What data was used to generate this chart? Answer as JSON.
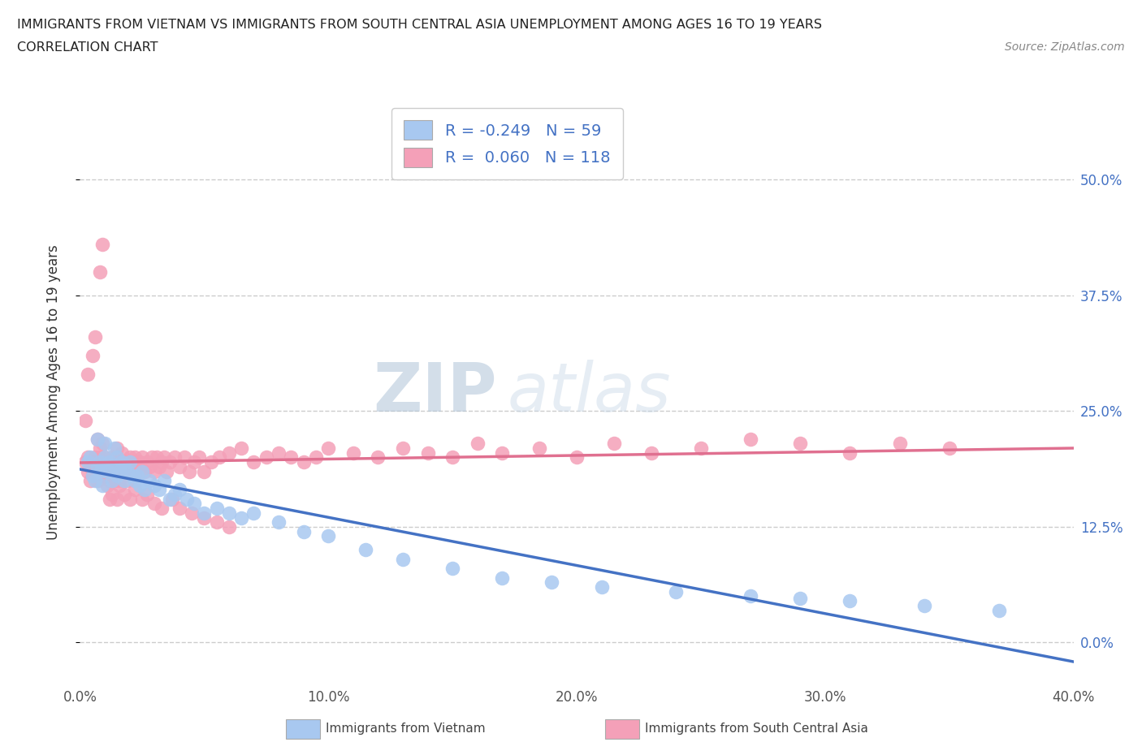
{
  "title_line1": "IMMIGRANTS FROM VIETNAM VS IMMIGRANTS FROM SOUTH CENTRAL ASIA UNEMPLOYMENT AMONG AGES 16 TO 19 YEARS",
  "title_line2": "CORRELATION CHART",
  "source_text": "Source: ZipAtlas.com",
  "ylabel": "Unemployment Among Ages 16 to 19 years",
  "xlim": [
    0.0,
    0.4
  ],
  "ylim": [
    -0.04,
    0.58
  ],
  "yticks": [
    0.0,
    0.125,
    0.25,
    0.375,
    0.5
  ],
  "ytick_labels": [
    "0.0%",
    "12.5%",
    "25.0%",
    "37.5%",
    "50.0%"
  ],
  "xticks": [
    0.0,
    0.1,
    0.2,
    0.3,
    0.4
  ],
  "xtick_labels": [
    "0.0%",
    "10.0%",
    "20.0%",
    "30.0%",
    "40.0%"
  ],
  "legend_label_vietnam": "Immigrants from Vietnam",
  "legend_label_sca": "Immigrants from South Central Asia",
  "r_vietnam": -0.249,
  "n_vietnam": 59,
  "r_sca": 0.06,
  "n_sca": 118,
  "color_vietnam": "#a8c8f0",
  "color_sca": "#f4a0b8",
  "line_color_vietnam": "#4472c4",
  "line_color_sca": "#e07090",
  "background_color": "#ffffff",
  "watermark_color": "#c8d8e8",
  "legend_text_color": "#4472c4",
  "right_tick_color": "#4472c4",
  "vietnam_x": [
    0.003,
    0.004,
    0.005,
    0.006,
    0.007,
    0.007,
    0.008,
    0.008,
    0.009,
    0.01,
    0.01,
    0.011,
    0.012,
    0.013,
    0.013,
    0.014,
    0.015,
    0.015,
    0.016,
    0.017,
    0.018,
    0.018,
    0.019,
    0.02,
    0.021,
    0.022,
    0.023,
    0.024,
    0.025,
    0.026,
    0.028,
    0.03,
    0.032,
    0.034,
    0.036,
    0.038,
    0.04,
    0.043,
    0.046,
    0.05,
    0.055,
    0.06,
    0.065,
    0.07,
    0.08,
    0.09,
    0.1,
    0.115,
    0.13,
    0.15,
    0.17,
    0.19,
    0.21,
    0.24,
    0.27,
    0.29,
    0.31,
    0.34,
    0.37
  ],
  "vietnam_y": [
    0.195,
    0.2,
    0.18,
    0.175,
    0.22,
    0.19,
    0.185,
    0.195,
    0.17,
    0.2,
    0.215,
    0.185,
    0.195,
    0.19,
    0.175,
    0.21,
    0.18,
    0.2,
    0.185,
    0.195,
    0.175,
    0.19,
    0.185,
    0.195,
    0.18,
    0.175,
    0.18,
    0.17,
    0.185,
    0.165,
    0.175,
    0.17,
    0.165,
    0.175,
    0.155,
    0.16,
    0.165,
    0.155,
    0.15,
    0.14,
    0.145,
    0.14,
    0.135,
    0.14,
    0.13,
    0.12,
    0.115,
    0.1,
    0.09,
    0.08,
    0.07,
    0.065,
    0.06,
    0.055,
    0.05,
    0.048,
    0.045,
    0.04,
    0.035
  ],
  "sca_x": [
    0.002,
    0.003,
    0.003,
    0.004,
    0.004,
    0.005,
    0.005,
    0.006,
    0.006,
    0.007,
    0.007,
    0.007,
    0.008,
    0.008,
    0.008,
    0.009,
    0.009,
    0.01,
    0.01,
    0.01,
    0.011,
    0.011,
    0.012,
    0.012,
    0.013,
    0.013,
    0.014,
    0.014,
    0.015,
    0.015,
    0.015,
    0.016,
    0.016,
    0.017,
    0.017,
    0.018,
    0.018,
    0.019,
    0.019,
    0.02,
    0.02,
    0.021,
    0.022,
    0.022,
    0.023,
    0.024,
    0.025,
    0.025,
    0.026,
    0.027,
    0.028,
    0.029,
    0.03,
    0.031,
    0.032,
    0.033,
    0.034,
    0.035,
    0.036,
    0.038,
    0.04,
    0.042,
    0.044,
    0.046,
    0.048,
    0.05,
    0.053,
    0.056,
    0.06,
    0.065,
    0.07,
    0.075,
    0.08,
    0.085,
    0.09,
    0.095,
    0.1,
    0.11,
    0.12,
    0.13,
    0.14,
    0.15,
    0.16,
    0.17,
    0.185,
    0.2,
    0.215,
    0.23,
    0.25,
    0.27,
    0.29,
    0.31,
    0.33,
    0.35,
    0.002,
    0.003,
    0.005,
    0.006,
    0.008,
    0.009,
    0.011,
    0.012,
    0.013,
    0.015,
    0.016,
    0.018,
    0.02,
    0.022,
    0.025,
    0.027,
    0.03,
    0.033,
    0.037,
    0.04,
    0.045,
    0.05,
    0.055,
    0.06
  ],
  "sca_y": [
    0.195,
    0.185,
    0.2,
    0.19,
    0.175,
    0.195,
    0.185,
    0.2,
    0.18,
    0.22,
    0.195,
    0.175,
    0.21,
    0.185,
    0.2,
    0.19,
    0.215,
    0.195,
    0.18,
    0.2,
    0.185,
    0.195,
    0.175,
    0.19,
    0.2,
    0.185,
    0.195,
    0.175,
    0.21,
    0.185,
    0.2,
    0.195,
    0.175,
    0.19,
    0.205,
    0.185,
    0.195,
    0.175,
    0.19,
    0.2,
    0.185,
    0.195,
    0.18,
    0.2,
    0.19,
    0.195,
    0.185,
    0.2,
    0.185,
    0.195,
    0.19,
    0.2,
    0.185,
    0.2,
    0.19,
    0.195,
    0.2,
    0.185,
    0.195,
    0.2,
    0.19,
    0.2,
    0.185,
    0.195,
    0.2,
    0.185,
    0.195,
    0.2,
    0.205,
    0.21,
    0.195,
    0.2,
    0.205,
    0.2,
    0.195,
    0.2,
    0.21,
    0.205,
    0.2,
    0.21,
    0.205,
    0.2,
    0.215,
    0.205,
    0.21,
    0.2,
    0.215,
    0.205,
    0.21,
    0.22,
    0.215,
    0.205,
    0.215,
    0.21,
    0.24,
    0.29,
    0.31,
    0.33,
    0.4,
    0.43,
    0.17,
    0.155,
    0.16,
    0.155,
    0.17,
    0.16,
    0.155,
    0.165,
    0.155,
    0.16,
    0.15,
    0.145,
    0.155,
    0.145,
    0.14,
    0.135,
    0.13,
    0.125
  ]
}
